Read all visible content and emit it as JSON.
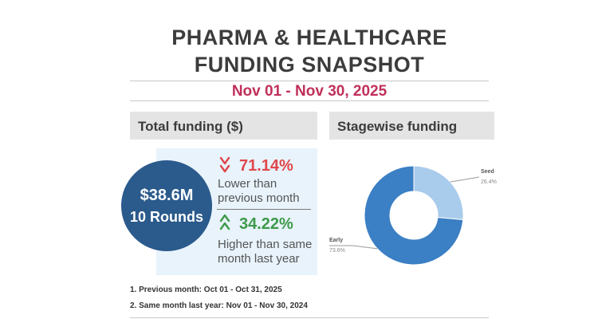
{
  "title": {
    "line1": "PHARMA & HEALTHCARE",
    "line2": "FUNDING SNAPSHOT"
  },
  "date_range": "Nov 01 - Nov 30, 2025",
  "total_funding": {
    "header": "Total funding ($)",
    "amount": "$38.6M",
    "rounds": "10 Rounds",
    "vs_previous": {
      "pct": "71.14%",
      "direction": "down",
      "desc": "Lower than previous month",
      "color": "#e0474c"
    },
    "vs_last_year": {
      "pct": "34.22%",
      "direction": "up",
      "desc": "Higher than same month last year",
      "color": "#3d9a4a"
    }
  },
  "stagewise": {
    "header": "Stagewise funding"
  },
  "footnotes": {
    "fn1": "1. Previous month: Oct 01 - Oct 31, 2025",
    "fn2": "2. Same month last year: Nov 01 - Nov 30, 2024"
  },
  "colors": {
    "title": "#3c3c3c",
    "date": "#c0305a",
    "circle": "#2b5a8c",
    "early": "#3b7fc4",
    "seed": "#a9cbec"
  },
  "chart_data": {
    "type": "pie",
    "title": "Stagewise funding",
    "categories": [
      "Seed",
      "Early"
    ],
    "values": [
      26.4,
      73.6
    ],
    "value_labels": [
      "26.4%",
      "73.6%"
    ],
    "colors": [
      "#a9cbec",
      "#3b7fc4"
    ],
    "donut": true
  }
}
